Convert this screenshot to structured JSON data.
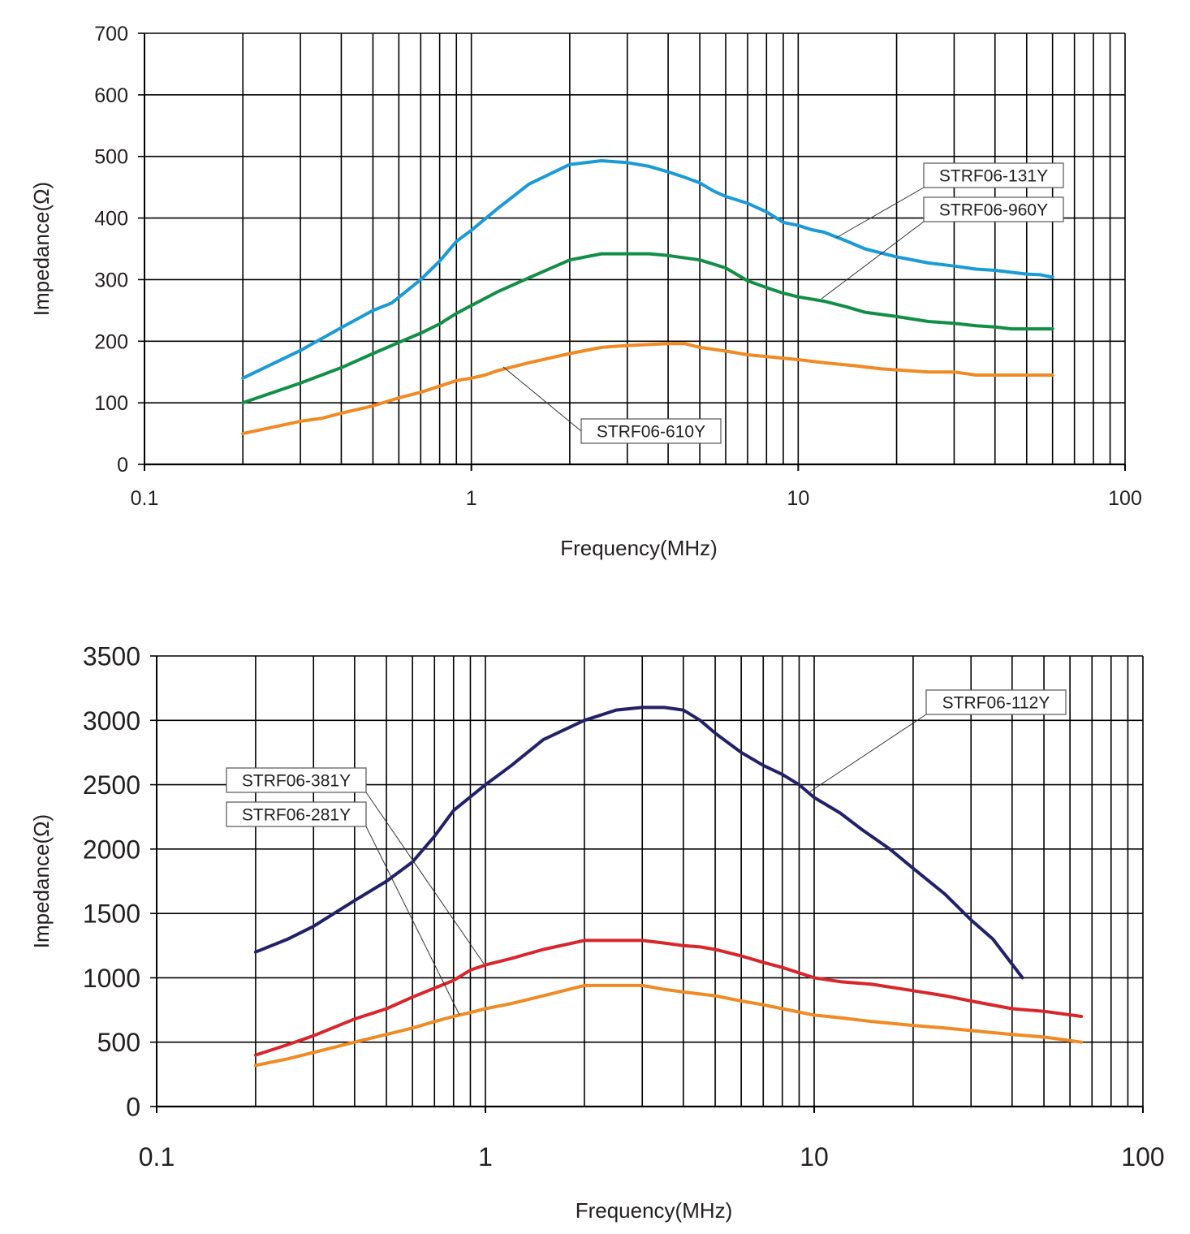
{
  "chart_data": [
    {
      "type": "line",
      "xlabel": "Frequency(MHz)",
      "ylabel": "Impedance(Ω)",
      "xscale": "log",
      "xlim": [
        0.1,
        100
      ],
      "ylim": [
        0,
        700
      ],
      "x_ticks": [
        "0.1",
        "1",
        "10",
        "100"
      ],
      "y_ticks": [
        "0",
        "100",
        "200",
        "300",
        "400",
        "500",
        "600",
        "700"
      ],
      "grid": true,
      "series": [
        {
          "name": "STRF06-131Y",
          "color": "#1b9ad6",
          "points": [
            [
              0.2,
              140
            ],
            [
              0.3,
              185
            ],
            [
              0.4,
              222
            ],
            [
              0.5,
              250
            ],
            [
              0.57,
              262
            ],
            [
              0.7,
              300
            ],
            [
              0.8,
              330
            ],
            [
              0.9,
              362
            ],
            [
              1,
              380
            ],
            [
              1.2,
              415
            ],
            [
              1.5,
              455
            ],
            [
              2,
              487
            ],
            [
              2.5,
              493
            ],
            [
              3,
              490
            ],
            [
              3.5,
              484
            ],
            [
              4,
              475
            ],
            [
              4.5,
              466
            ],
            [
              5,
              457
            ],
            [
              5.5,
              444
            ],
            [
              6,
              435
            ],
            [
              7,
              424
            ],
            [
              8,
              410
            ],
            [
              9,
              393
            ],
            [
              10,
              388
            ],
            [
              11,
              381
            ],
            [
              12,
              377
            ],
            [
              14,
              363
            ],
            [
              16,
              350
            ],
            [
              20,
              337
            ],
            [
              25,
              327
            ],
            [
              30,
              322
            ],
            [
              35,
              317
            ],
            [
              40,
              315
            ],
            [
              50,
              309
            ],
            [
              55,
              308
            ],
            [
              60,
              304
            ]
          ]
        },
        {
          "name": "STRF06-960Y",
          "color": "#138e47",
          "points": [
            [
              0.2,
              100
            ],
            [
              0.3,
              132
            ],
            [
              0.4,
              157
            ],
            [
              0.5,
              180
            ],
            [
              0.6,
              198
            ],
            [
              0.7,
              213
            ],
            [
              0.8,
              228
            ],
            [
              0.9,
              245
            ],
            [
              1,
              258
            ],
            [
              1.2,
              280
            ],
            [
              1.5,
              303
            ],
            [
              2,
              332
            ],
            [
              2.5,
              342
            ],
            [
              3,
              342
            ],
            [
              3.5,
              342
            ],
            [
              4,
              339
            ],
            [
              5,
              332
            ],
            [
              6,
              319
            ],
            [
              7,
              298
            ],
            [
              8,
              287
            ],
            [
              9,
              278
            ],
            [
              10,
              272
            ],
            [
              12,
              265
            ],
            [
              14,
              256
            ],
            [
              16,
              247
            ],
            [
              20,
              240
            ],
            [
              25,
              232
            ],
            [
              30,
              229
            ],
            [
              35,
              225
            ],
            [
              40,
              223
            ],
            [
              45,
              220
            ],
            [
              50,
              220
            ],
            [
              60,
              220
            ]
          ]
        },
        {
          "name": "STRF06-610Y",
          "color": "#f08a24",
          "points": [
            [
              0.2,
              50
            ],
            [
              0.3,
              70
            ],
            [
              0.35,
              75
            ],
            [
              0.4,
              83
            ],
            [
              0.5,
              95
            ],
            [
              0.6,
              108
            ],
            [
              0.7,
              117
            ],
            [
              0.8,
              127
            ],
            [
              0.9,
              136
            ],
            [
              1,
              140
            ],
            [
              1.1,
              145
            ],
            [
              1.2,
              152
            ],
            [
              1.5,
              165
            ],
            [
              2,
              180
            ],
            [
              2.5,
              190
            ],
            [
              3,
              193
            ],
            [
              4,
              196
            ],
            [
              4.5,
              196
            ],
            [
              5,
              190
            ],
            [
              6,
              184
            ],
            [
              7,
              178
            ],
            [
              8,
              175
            ],
            [
              10,
              170
            ],
            [
              12,
              165
            ],
            [
              15,
              160
            ],
            [
              18,
              155
            ],
            [
              25,
              150
            ],
            [
              30,
              150
            ],
            [
              35,
              145
            ],
            [
              45,
              145
            ],
            [
              60,
              145
            ]
          ]
        }
      ],
      "annotations": [
        "STRF06-131Y",
        "STRF06-960Y",
        "STRF06-610Y"
      ]
    },
    {
      "type": "line",
      "xlabel": "Frequency(MHz)",
      "ylabel": "Impedance(Ω)",
      "xscale": "log",
      "xlim": [
        0.1,
        100
      ],
      "ylim": [
        0,
        3500
      ],
      "x_ticks": [
        "0.1",
        "1",
        "10",
        "100"
      ],
      "y_ticks": [
        "0",
        "500",
        "1000",
        "1500",
        "2000",
        "2500",
        "3000",
        "3500"
      ],
      "grid": true,
      "series": [
        {
          "name": "STRF06-112Y",
          "color": "#232167",
          "points": [
            [
              0.2,
              1200
            ],
            [
              0.25,
              1300
            ],
            [
              0.3,
              1400
            ],
            [
              0.4,
              1600
            ],
            [
              0.5,
              1750
            ],
            [
              0.6,
              1900
            ],
            [
              0.7,
              2100
            ],
            [
              0.8,
              2300
            ],
            [
              1,
              2500
            ],
            [
              1.2,
              2650
            ],
            [
              1.5,
              2850
            ],
            [
              2,
              3000
            ],
            [
              2.5,
              3080
            ],
            [
              3,
              3100
            ],
            [
              3.5,
              3100
            ],
            [
              4,
              3080
            ],
            [
              4.5,
              3000
            ],
            [
              5,
              2900
            ],
            [
              6,
              2750
            ],
            [
              7,
              2650
            ],
            [
              8,
              2580
            ],
            [
              9,
              2500
            ],
            [
              10,
              2400
            ],
            [
              12,
              2280
            ],
            [
              14,
              2150
            ],
            [
              17,
              2000
            ],
            [
              20,
              1850
            ],
            [
              25,
              1650
            ],
            [
              30,
              1450
            ],
            [
              35,
              1300
            ],
            [
              43,
              1000
            ]
          ]
        },
        {
          "name": "STRF06-381Y",
          "color": "#d7262c",
          "points": [
            [
              0.2,
              400
            ],
            [
              0.25,
              480
            ],
            [
              0.3,
              550
            ],
            [
              0.4,
              680
            ],
            [
              0.5,
              760
            ],
            [
              0.6,
              850
            ],
            [
              0.7,
              920
            ],
            [
              0.8,
              980
            ],
            [
              0.9,
              1060
            ],
            [
              1,
              1100
            ],
            [
              1.2,
              1150
            ],
            [
              1.5,
              1220
            ],
            [
              2,
              1290
            ],
            [
              2.5,
              1290
            ],
            [
              3,
              1290
            ],
            [
              3.5,
              1270
            ],
            [
              4,
              1250
            ],
            [
              4.5,
              1240
            ],
            [
              5,
              1220
            ],
            [
              6,
              1170
            ],
            [
              7,
              1120
            ],
            [
              8,
              1080
            ],
            [
              10,
              1000
            ],
            [
              12,
              970
            ],
            [
              15,
              950
            ],
            [
              20,
              900
            ],
            [
              25,
              860
            ],
            [
              30,
              820
            ],
            [
              40,
              760
            ],
            [
              50,
              740
            ],
            [
              65,
              700
            ]
          ]
        },
        {
          "name": "STRF06-281Y",
          "color": "#f08a24",
          "points": [
            [
              0.2,
              320
            ],
            [
              0.25,
              370
            ],
            [
              0.3,
              420
            ],
            [
              0.4,
              500
            ],
            [
              0.5,
              560
            ],
            [
              0.6,
              610
            ],
            [
              0.7,
              660
            ],
            [
              0.8,
              700
            ],
            [
              0.9,
              730
            ],
            [
              1,
              760
            ],
            [
              1.2,
              800
            ],
            [
              1.5,
              860
            ],
            [
              2,
              940
            ],
            [
              2.5,
              940
            ],
            [
              3,
              940
            ],
            [
              3.5,
              910
            ],
            [
              4,
              890
            ],
            [
              5,
              860
            ],
            [
              6,
              820
            ],
            [
              7,
              790
            ],
            [
              8,
              760
            ],
            [
              10,
              710
            ],
            [
              12,
              690
            ],
            [
              15,
              660
            ],
            [
              20,
              630
            ],
            [
              25,
              610
            ],
            [
              30,
              590
            ],
            [
              40,
              560
            ],
            [
              50,
              540
            ],
            [
              65,
              500
            ]
          ]
        }
      ],
      "annotations": [
        "STRF06-112Y",
        "STRF06-381Y",
        "STRF06-281Y"
      ]
    }
  ]
}
